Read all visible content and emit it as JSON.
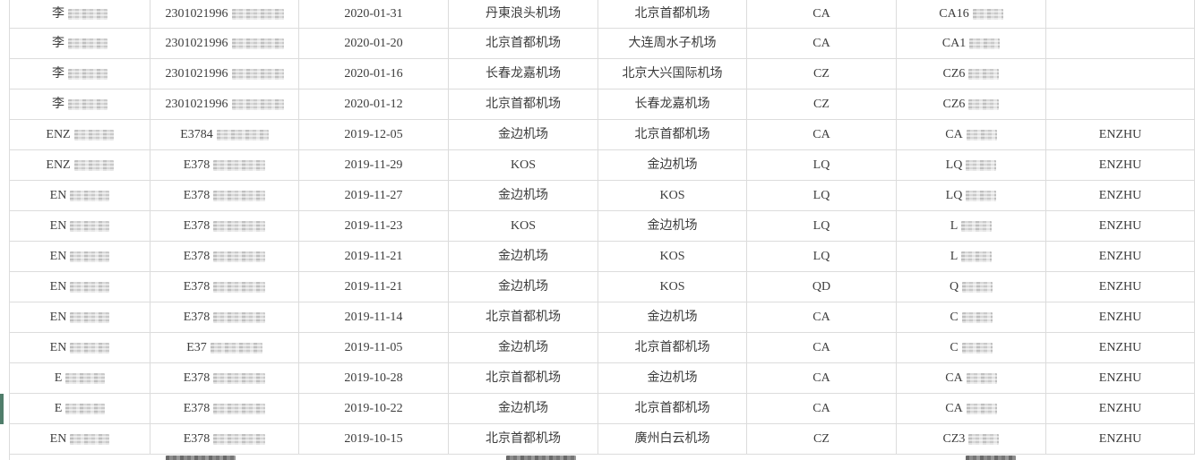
{
  "colors": {
    "background": "#ffffff",
    "text": "#3c3c3c",
    "grid_line": "#dcdcdc",
    "redaction": "#cccccc",
    "selected_row_indicator": "#4f7d6a"
  },
  "table": {
    "rows": [
      {
        "name_prefix": "李",
        "id_prefix": "2301021996",
        "date": "2020-01-31",
        "departure": "丹東浪头机场",
        "arrival": "北京首都机场",
        "airline": "CA",
        "flight_prefix": "CA16",
        "remark": ""
      },
      {
        "name_prefix": "李",
        "id_prefix": "2301021996",
        "date": "2020-01-20",
        "departure": "北京首都机场",
        "arrival": "大连周水子机场",
        "airline": "CA",
        "flight_prefix": "CA1",
        "remark": ""
      },
      {
        "name_prefix": "李",
        "id_prefix": "2301021996",
        "date": "2020-01-16",
        "departure": "长春龙嘉机场",
        "arrival": "北京大兴国际机场",
        "airline": "CZ",
        "flight_prefix": "CZ6",
        "remark": ""
      },
      {
        "name_prefix": "李",
        "id_prefix": "2301021996",
        "date": "2020-01-12",
        "departure": "北京首都机场",
        "arrival": "长春龙嘉机场",
        "airline": "CZ",
        "flight_prefix": "CZ6",
        "remark": ""
      },
      {
        "name_prefix": "ENZ",
        "id_prefix": "E3784",
        "date": "2019-12-05",
        "departure": "金边机场",
        "arrival": "北京首都机场",
        "airline": "CA",
        "flight_prefix": "CA",
        "remark": "ENZHU"
      },
      {
        "name_prefix": "ENZ",
        "id_prefix": "E378",
        "date": "2019-11-29",
        "departure": "KOS",
        "arrival": "金边机场",
        "airline": "LQ",
        "flight_prefix": "LQ",
        "remark": "ENZHU"
      },
      {
        "name_prefix": "EN",
        "id_prefix": "E378",
        "date": "2019-11-27",
        "departure": "金边机场",
        "arrival": "KOS",
        "airline": "LQ",
        "flight_prefix": "LQ",
        "remark": "ENZHU"
      },
      {
        "name_prefix": "EN",
        "id_prefix": "E378",
        "date": "2019-11-23",
        "departure": "KOS",
        "arrival": "金边机场",
        "airline": "LQ",
        "flight_prefix": "L",
        "remark": "ENZHU"
      },
      {
        "name_prefix": "EN",
        "id_prefix": "E378",
        "date": "2019-11-21",
        "departure": "金边机场",
        "arrival": "KOS",
        "airline": "LQ",
        "flight_prefix": "L",
        "remark": "ENZHU"
      },
      {
        "name_prefix": "EN",
        "id_prefix": "E378",
        "date": "2019-11-21",
        "departure": "金边机场",
        "arrival": "KOS",
        "airline": "QD",
        "flight_prefix": "Q",
        "remark": "ENZHU"
      },
      {
        "name_prefix": "EN",
        "id_prefix": "E378",
        "date": "2019-11-14",
        "departure": "北京首都机场",
        "arrival": "金边机场",
        "airline": "CA",
        "flight_prefix": "C",
        "remark": "ENZHU"
      },
      {
        "name_prefix": "EN",
        "id_prefix": "E37",
        "date": "2019-11-05",
        "departure": "金边机场",
        "arrival": "北京首都机场",
        "airline": "CA",
        "flight_prefix": "C",
        "remark": "ENZHU"
      },
      {
        "name_prefix": "E",
        "id_prefix": "E378",
        "date": "2019-10-28",
        "departure": "北京首都机场",
        "arrival": "金边机场",
        "airline": "CA",
        "flight_prefix": "CA",
        "remark": "ENZHU"
      },
      {
        "name_prefix": "E",
        "id_prefix": "E378",
        "date": "2019-10-22",
        "departure": "金边机场",
        "arrival": "北京首都机场",
        "airline": "CA",
        "flight_prefix": "CA",
        "remark": "ENZHU"
      },
      {
        "name_prefix": "EN",
        "id_prefix": "E378",
        "date": "2019-10-15",
        "departure": "北京首都机场",
        "arrival": "廣州白云机场",
        "airline": "CZ",
        "flight_prefix": "CZ3",
        "remark": "ENZHU"
      }
    ]
  }
}
